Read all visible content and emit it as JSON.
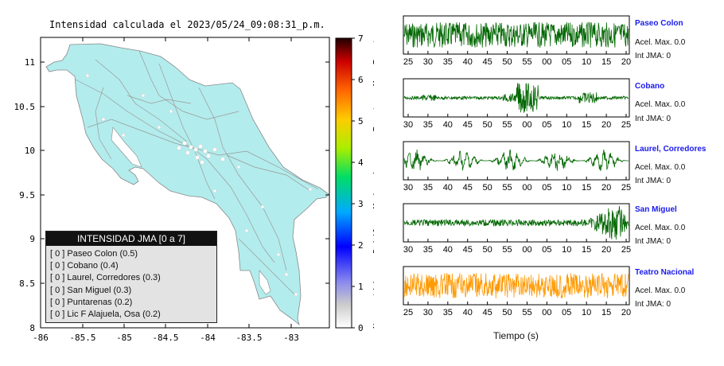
{
  "title": "Intensidad calculada el 2023/05/24_09:08:31_p.m.",
  "map": {
    "lon_ticks": [
      "-86",
      "-85.5",
      "-85",
      "-84.5",
      "-84",
      "-83.5",
      "-83"
    ],
    "lat_ticks": [
      "11",
      "10.5",
      "10",
      "9.5",
      "9",
      "8.5",
      "8"
    ],
    "land_color": "#b3ecec"
  },
  "colorbar": {
    "ticks": [
      "0",
      "1",
      "2",
      "3",
      "4",
      "5",
      "6",
      "7"
    ],
    "categories": [
      "No sentido",
      "Debil",
      "Moderado",
      "Fuerte",
      "Muy Fuerte"
    ]
  },
  "legend": {
    "heading": "INTENSIDAD JMA [0 a 7]",
    "items": [
      "[ 0 ]  Paseo Colon (0.5)",
      "[ 0 ]  Cobano (0.4)",
      "[ 0 ]  Laurel, Corredores (0.3)",
      "[ 0 ]  San Miguel (0.3)",
      "[ 0 ]  Puntarenas (0.2)",
      "[ 0 ]  Lic F Alajuela, Osa (0.2)"
    ]
  },
  "stations": [
    {
      "name": "Paseo Colon",
      "acel": "Acel. Max. 0.0",
      "int": "Int JMA: 0",
      "color": "#006600",
      "ticks": [
        "25",
        "30",
        "35",
        "40",
        "45",
        "50",
        "55",
        "00",
        "05",
        "10",
        "15",
        "20"
      ],
      "kind": "steady"
    },
    {
      "name": "Cobano",
      "acel": "Acel. Max. 0.0",
      "int": "Int JMA: 0",
      "color": "#006600",
      "ticks": [
        "30",
        "35",
        "40",
        "45",
        "50",
        "55",
        "00",
        "05",
        "10",
        "15",
        "20",
        "25"
      ],
      "kind": "burst"
    },
    {
      "name": "Laurel, Corredores",
      "acel": "Acel. Max. 0.0",
      "int": "Int JMA: 0",
      "color": "#006600",
      "ticks": [
        "30",
        "35",
        "40",
        "45",
        "50",
        "55",
        "00",
        "05",
        "10",
        "15",
        "20",
        "25"
      ],
      "kind": "lowfreq"
    },
    {
      "name": "San Miguel",
      "acel": "Acel. Max. 0.0",
      "int": "Int JMA: 0",
      "color": "#006600",
      "ticks": [
        "30",
        "35",
        "40",
        "45",
        "50",
        "55",
        "00",
        "05",
        "10",
        "15",
        "20",
        "25"
      ],
      "kind": "late"
    },
    {
      "name": "Teatro Nacional",
      "acel": "Acel. Max. 0.0",
      "int": "Int JMA: 0",
      "color": "#ff9900",
      "ticks": [
        "25",
        "30",
        "35",
        "40",
        "45",
        "50",
        "55",
        "00",
        "05",
        "10",
        "15",
        "20"
      ],
      "kind": "steady"
    }
  ],
  "x_axis_label": "Tiempo (s)"
}
